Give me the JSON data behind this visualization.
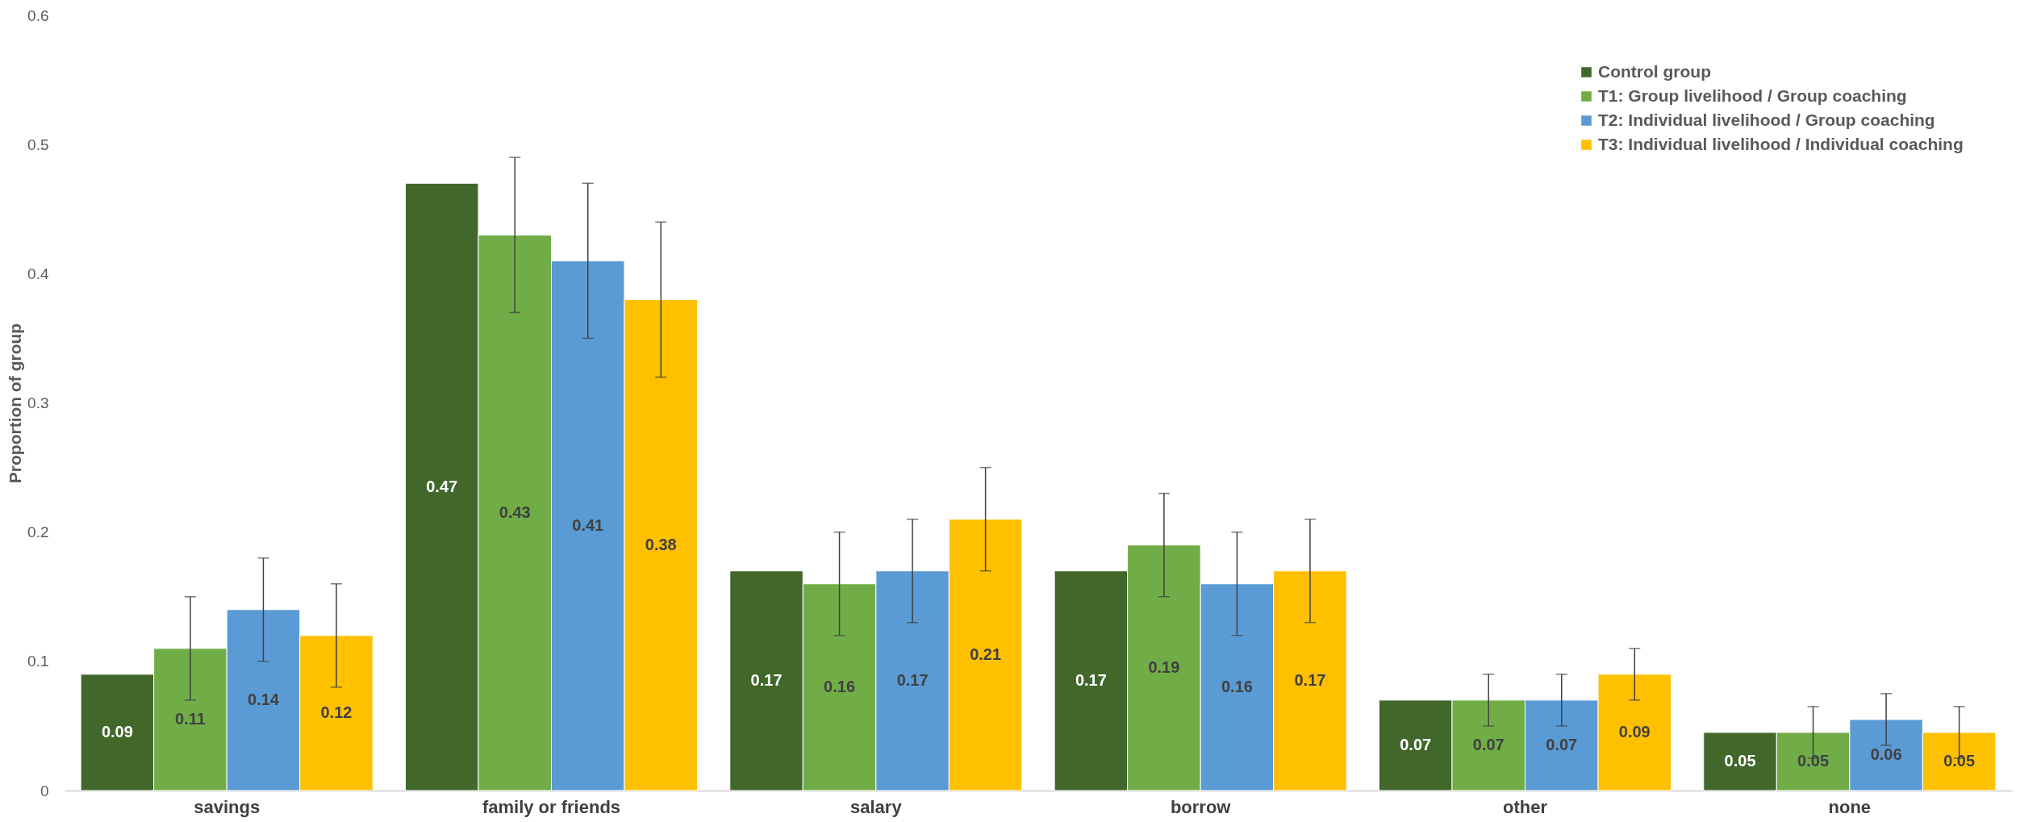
{
  "chart_data": {
    "type": "bar",
    "ylabel": "Proportion of group",
    "categories": [
      "savings",
      "family or friends",
      "salary",
      "borrow",
      "other",
      "none"
    ],
    "ylim": [
      0,
      0.6
    ],
    "yticks": [
      0,
      0.1,
      0.2,
      0.3,
      0.4,
      0.5,
      0.6
    ],
    "grid": false,
    "legend": "top right",
    "series": [
      {
        "name": "Control group",
        "color": "#41672a",
        "values": [
          0.09,
          0.47,
          0.17,
          0.17,
          0.07,
          0.045
        ],
        "value_labels": [
          "0.09",
          "0.47",
          "0.17",
          "0.17",
          "0.07",
          "0.05"
        ]
      },
      {
        "name": "T1: Group livelihood / Group coaching",
        "color": "#70ad47",
        "values": [
          0.11,
          0.43,
          0.16,
          0.19,
          0.07,
          0.045
        ],
        "value_labels": [
          "0.11",
          "0.43",
          "0.16",
          "0.19",
          "0.07",
          "0.05"
        ],
        "errors": [
          [
            0.07,
            0.15
          ],
          [
            0.37,
            0.49
          ],
          [
            0.12,
            0.2
          ],
          [
            0.15,
            0.23
          ],
          [
            0.05,
            0.09
          ],
          [
            0.025,
            0.065
          ]
        ]
      },
      {
        "name": "T2: Individual livelihood / Group coaching",
        "color": "#5b9bd5",
        "values": [
          0.14,
          0.41,
          0.17,
          0.16,
          0.07,
          0.055
        ],
        "value_labels": [
          "0.14",
          "0.41",
          "0.17",
          "0.16",
          "0.07",
          "0.06"
        ],
        "errors": [
          [
            0.1,
            0.18
          ],
          [
            0.35,
            0.47
          ],
          [
            0.13,
            0.21
          ],
          [
            0.12,
            0.2
          ],
          [
            0.05,
            0.09
          ],
          [
            0.035,
            0.075
          ]
        ]
      },
      {
        "name": "T3: Individual livelihood / Individual coaching",
        "color": "#ffc000",
        "values": [
          0.12,
          0.38,
          0.21,
          0.17,
          0.09,
          0.045
        ],
        "value_labels": [
          "0.12",
          "0.38",
          "0.21",
          "0.17",
          "0.09",
          "0.05"
        ],
        "errors": [
          [
            0.08,
            0.16
          ],
          [
            0.32,
            0.44
          ],
          [
            0.17,
            0.25
          ],
          [
            0.13,
            0.21
          ],
          [
            0.07,
            0.11
          ],
          [
            0.025,
            0.065
          ]
        ]
      }
    ]
  }
}
